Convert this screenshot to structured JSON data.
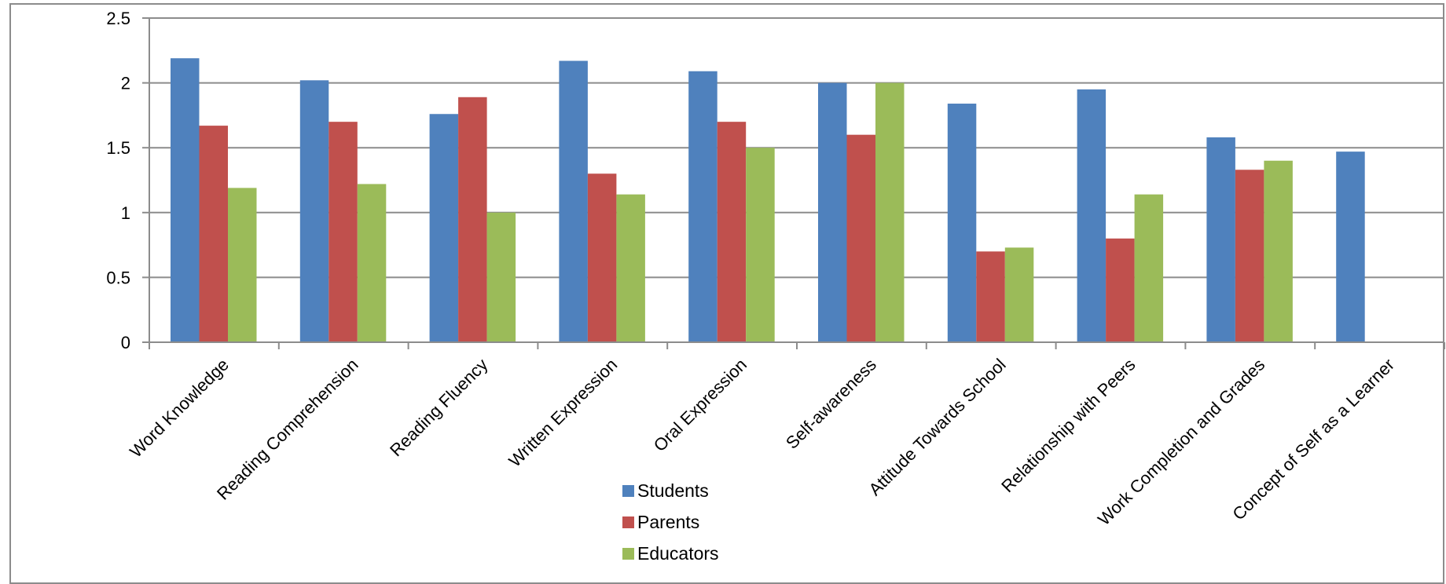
{
  "chart_data": {
    "type": "bar",
    "categories": [
      "Word Knowledge",
      "Reading Comprehension",
      "Reading Fluency",
      "Written Expression",
      "Oral Expression",
      "Self-awareness",
      "Attitude Towards School",
      "Relationship with Peers",
      "Work Completion and Grades",
      "Concept of Self as a Learner"
    ],
    "series": [
      {
        "name": "Students",
        "color": "#4F81BD",
        "values": [
          2.19,
          2.02,
          1.76,
          2.17,
          2.09,
          2.0,
          1.84,
          1.95,
          1.58,
          1.47
        ]
      },
      {
        "name": "Parents",
        "color": "#C0504D",
        "values": [
          1.67,
          1.7,
          1.89,
          1.3,
          1.7,
          1.6,
          0.7,
          0.8,
          1.33,
          null
        ]
      },
      {
        "name": "Educators",
        "color": "#9BBB59",
        "values": [
          1.19,
          1.22,
          1.0,
          1.14,
          1.5,
          2.0,
          0.73,
          1.14,
          1.4,
          null
        ]
      }
    ],
    "yticks": [
      "0",
      "0.5",
      "1",
      "1.5",
      "2",
      "2.5"
    ],
    "ylim": [
      0,
      2.5
    ],
    "grid": true,
    "legend_position": "bottom-center",
    "title": "",
    "xlabel": "",
    "ylabel": ""
  }
}
